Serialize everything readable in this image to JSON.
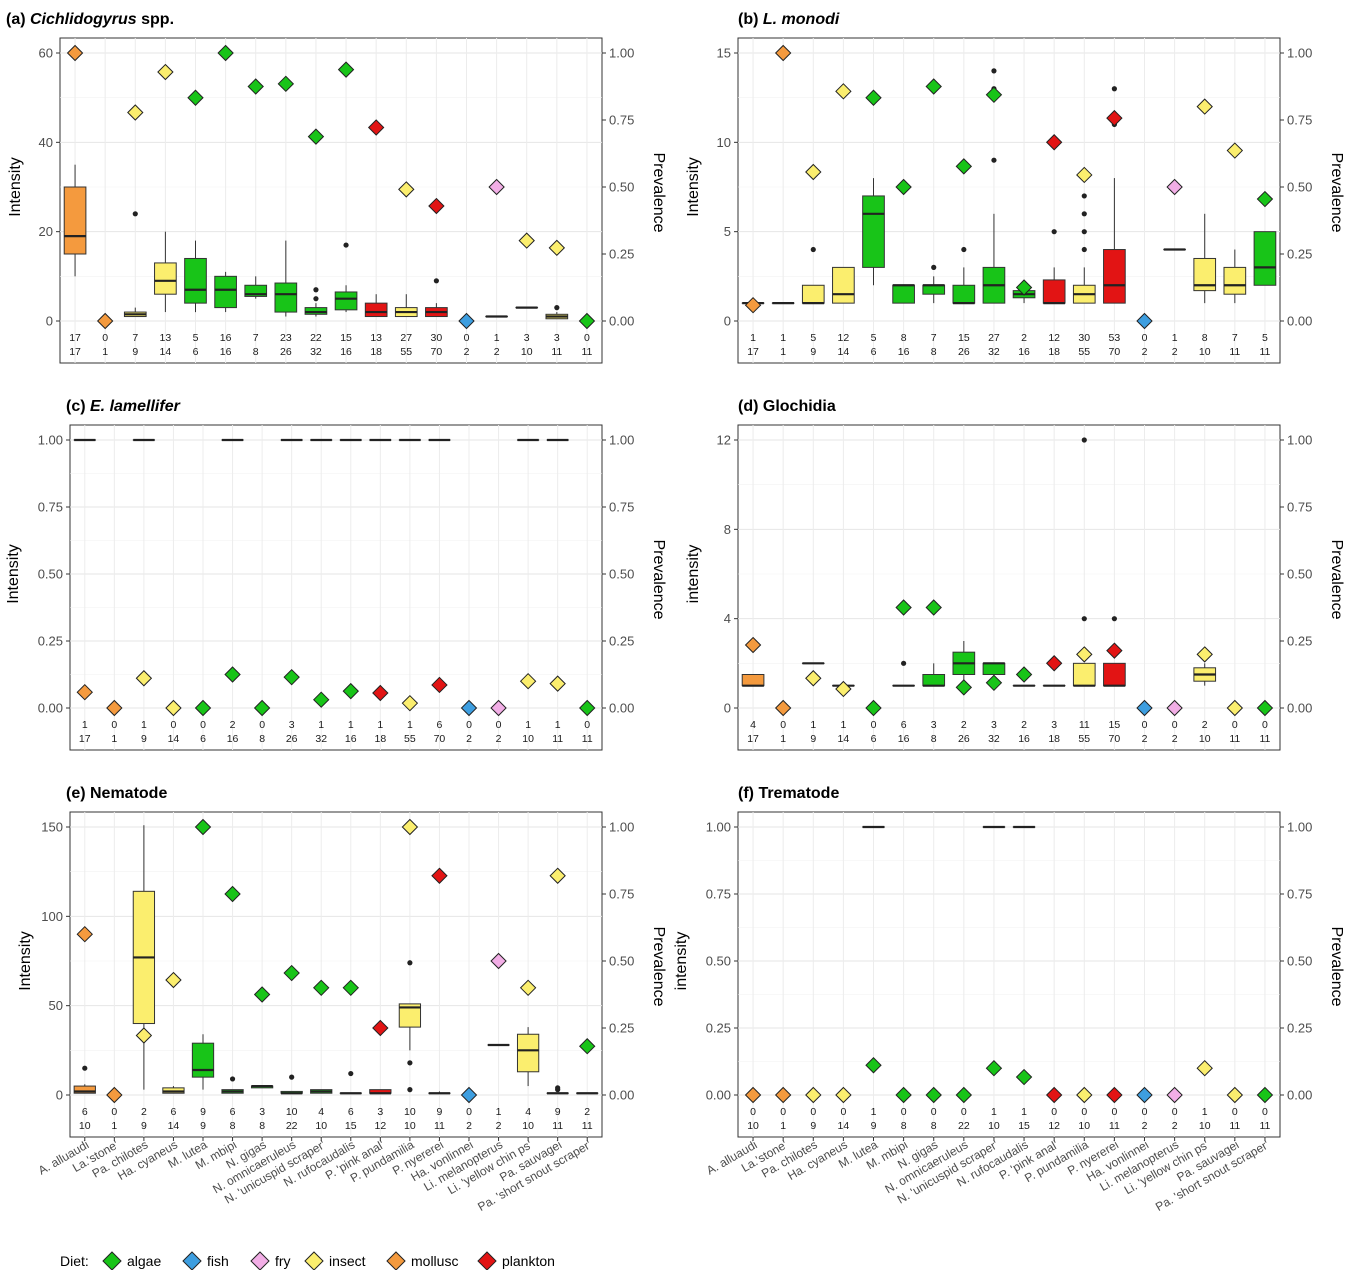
{
  "species": [
    "A. alluaudi",
    "La.'stone'",
    "Pa. chilotes",
    "Ha. cyaneus",
    "M. lutea",
    "M. mbipi",
    "N. gigas",
    "N. omnicaeruleus",
    "N. 'unicuspid scraper'",
    "N. rufocaudalis",
    "P. 'pink anal'",
    "P. pundamilia",
    "P. nyererei",
    "Ha. vonlinnei",
    "Li. melanopterus",
    "Li. 'yellow chin ps'",
    "Pa. sauvagei",
    "Pa. 'short snout scraper'"
  ],
  "diet": [
    "mollusc",
    "mollusc",
    "insect",
    "insect",
    "algae",
    "algae",
    "algae",
    "algae",
    "algae",
    "algae",
    "plankton",
    "insect",
    "plankton",
    "fish",
    "fry",
    "insect",
    "insect",
    "algae"
  ],
  "colors": {
    "algae": "#18c418",
    "fish": "#3d9ee0",
    "fry": "#f2aee6",
    "insect": "#fbee6e",
    "mollusc": "#f49a3e",
    "plankton": "#e21414"
  },
  "legend": {
    "title": "Diet:",
    "items": [
      "algae",
      "fish",
      "fry",
      "insect",
      "mollusc",
      "plankton"
    ]
  },
  "chart_data": [
    {
      "id": "a",
      "label": "(a)",
      "title_italic": "Cichlidogyrus",
      "title_rest": " spp.",
      "type": "box",
      "ylabel": "Intensity",
      "y2label": "Prevalence",
      "ylim": [
        0,
        60
      ],
      "yticks": [
        0,
        20,
        40,
        60
      ],
      "y2ticks": [
        "0.00",
        "0.25",
        "0.50",
        "0.75",
        "1.00"
      ],
      "infected": [
        17,
        0,
        7,
        13,
        5,
        16,
        7,
        23,
        22,
        15,
        13,
        27,
        30,
        0,
        1,
        3,
        3,
        0
      ],
      "examined": [
        17,
        1,
        9,
        14,
        6,
        16,
        8,
        26,
        32,
        16,
        18,
        55,
        70,
        2,
        2,
        10,
        11,
        11
      ],
      "prevalence": [
        1.0,
        0,
        0.778,
        0.929,
        0.833,
        1.0,
        0.875,
        0.885,
        0.688,
        0.938,
        0.722,
        0.491,
        0.429,
        0,
        0.5,
        0.3,
        0.273,
        0
      ],
      "box": [
        [
          10,
          15,
          19,
          30,
          35
        ],
        null,
        [
          1,
          1,
          1.5,
          2,
          3
        ],
        [
          2,
          6,
          9,
          13,
          20
        ],
        [
          2,
          4,
          7,
          14,
          18
        ],
        [
          2,
          3,
          7,
          10,
          11
        ],
        [
          5,
          5.5,
          6,
          8,
          10
        ],
        [
          1,
          2,
          6,
          8.5,
          18
        ],
        [
          1,
          1.5,
          2,
          3,
          4
        ],
        [
          2,
          2.5,
          5,
          6.5,
          8
        ],
        [
          1,
          1,
          2,
          4,
          6
        ],
        [
          1,
          1,
          2,
          3,
          6
        ],
        [
          1,
          1,
          2,
          3,
          4
        ],
        null,
        [
          1,
          1,
          1,
          1,
          1
        ],
        [
          3,
          3,
          3,
          3,
          3
        ],
        [
          0.5,
          0.5,
          1,
          1.5,
          2
        ],
        null
      ],
      "outliers": [
        [],
        [],
        [
          24
        ],
        [],
        [],
        [],
        [],
        [],
        [
          5,
          7
        ],
        [
          17
        ],
        [],
        [],
        [
          9
        ],
        [],
        [],
        [],
        [
          3
        ],
        []
      ],
      "counts_show": true
    },
    {
      "id": "b",
      "label": "(b)",
      "title_italic": "L. monodi",
      "title_rest": "",
      "type": "box",
      "ylabel": "Intensity",
      "y2label": "Prevalence",
      "ylim": [
        0,
        15
      ],
      "yticks": [
        0,
        5,
        10,
        15
      ],
      "y2ticks": [
        "0.00",
        "0.25",
        "0.50",
        "0.75",
        "1.00"
      ],
      "infected": [
        1,
        1,
        5,
        12,
        5,
        8,
        7,
        15,
        27,
        2,
        12,
        30,
        53,
        0,
        1,
        8,
        7,
        5
      ],
      "examined": [
        17,
        1,
        9,
        14,
        6,
        16,
        8,
        26,
        32,
        16,
        18,
        55,
        70,
        2,
        2,
        10,
        11,
        11
      ],
      "prevalence": [
        0.059,
        1.0,
        0.556,
        0.857,
        0.833,
        0.5,
        0.875,
        0.577,
        0.844,
        0.125,
        0.667,
        0.545,
        0.757,
        0,
        0.5,
        0.8,
        0.636,
        0.455
      ],
      "box": [
        [
          1,
          1,
          1,
          1,
          1
        ],
        [
          1,
          1,
          1,
          1,
          1
        ],
        [
          1,
          1,
          1,
          2,
          2
        ],
        [
          1,
          1,
          1.5,
          3,
          3
        ],
        [
          2,
          3,
          6,
          7,
          8
        ],
        [
          1,
          1,
          2,
          2,
          2
        ],
        [
          1,
          1.5,
          2,
          2,
          2.5
        ],
        [
          1,
          1,
          1,
          2,
          3
        ],
        [
          1,
          1,
          2,
          3,
          6
        ],
        [
          1,
          1.3,
          1.5,
          1.7,
          2
        ],
        [
          1,
          1,
          1,
          2.3,
          3
        ],
        [
          1,
          1,
          1.5,
          2,
          3
        ],
        [
          1,
          1,
          2,
          4,
          8
        ],
        null,
        [
          4,
          4,
          4,
          4,
          4
        ],
        [
          1,
          1.7,
          2,
          3.5,
          6
        ],
        [
          1,
          1.5,
          2,
          3,
          4
        ],
        [
          2,
          2,
          3,
          5,
          5
        ]
      ],
      "outliers": [
        [],
        [],
        [
          4
        ],
        [],
        [],
        [],
        [
          3
        ],
        [
          4
        ],
        [
          9,
          13,
          14
        ],
        [],
        [
          5
        ],
        [
          4,
          5,
          6,
          7
        ],
        [
          11,
          13
        ],
        [],
        [],
        [],
        [],
        []
      ],
      "counts_show": true
    },
    {
      "id": "c",
      "label": "(c)",
      "title_italic": "E. lamellifer",
      "title_rest": "",
      "type": "box",
      "ylabel": "Intensity",
      "y2label": "Prevalence",
      "ylim": [
        0,
        1
      ],
      "yticks": [
        "0.00",
        "0.25",
        "0.50",
        "0.75",
        "1.00"
      ],
      "ytick_vals": [
        0,
        0.25,
        0.5,
        0.75,
        1
      ],
      "y2ticks": [
        "0.00",
        "0.25",
        "0.50",
        "0.75",
        "1.00"
      ],
      "infected": [
        1,
        0,
        1,
        0,
        0,
        2,
        0,
        3,
        1,
        1,
        1,
        1,
        6,
        0,
        0,
        1,
        1,
        0
      ],
      "examined": [
        17,
        1,
        9,
        14,
        6,
        16,
        8,
        26,
        32,
        16,
        18,
        55,
        70,
        2,
        2,
        10,
        11,
        11
      ],
      "prevalence": [
        0.059,
        0,
        0.111,
        0,
        0,
        0.125,
        0,
        0.115,
        0.031,
        0.063,
        0.056,
        0.018,
        0.086,
        0,
        0,
        0.1,
        0.091,
        0
      ],
      "box": [
        [
          1,
          1,
          1,
          1,
          1
        ],
        null,
        [
          1,
          1,
          1,
          1,
          1
        ],
        null,
        null,
        [
          1,
          1,
          1,
          1,
          1
        ],
        null,
        [
          1,
          1,
          1,
          1,
          1
        ],
        [
          1,
          1,
          1,
          1,
          1
        ],
        [
          1,
          1,
          1,
          1,
          1
        ],
        [
          1,
          1,
          1,
          1,
          1
        ],
        [
          1,
          1,
          1,
          1,
          1
        ],
        [
          1,
          1,
          1,
          1,
          1
        ],
        null,
        null,
        [
          1,
          1,
          1,
          1,
          1
        ],
        [
          1,
          1,
          1,
          1,
          1
        ],
        null
      ],
      "outliers": [
        [],
        [],
        [],
        [],
        [],
        [],
        [],
        [],
        [],
        [],
        [],
        [],
        [],
        [],
        [],
        [],
        [],
        []
      ],
      "counts_show": true
    },
    {
      "id": "d",
      "label": "(d)",
      "title_italic": "",
      "title_rest": "Glochidia",
      "type": "box",
      "ylabel": "intensity",
      "y2label": "Prevalence",
      "ylim": [
        0,
        12
      ],
      "yticks": [
        0,
        4,
        8,
        12
      ],
      "y2ticks": [
        "0.00",
        "0.25",
        "0.50",
        "0.75",
        "1.00"
      ],
      "infected": [
        4,
        0,
        1,
        1,
        0,
        6,
        3,
        2,
        3,
        2,
        3,
        11,
        15,
        0,
        0,
        2,
        0,
        0
      ],
      "examined": [
        17,
        1,
        9,
        14,
        6,
        16,
        8,
        26,
        32,
        16,
        18,
        55,
        70,
        2,
        2,
        10,
        11,
        11
      ],
      "prevalence": [
        0.235,
        0,
        0.111,
        0.071,
        0,
        0.375,
        0.375,
        0.077,
        0.094,
        0.125,
        0.167,
        0.2,
        0.214,
        0,
        0,
        0.2,
        0,
        0
      ],
      "box": [
        [
          1,
          1,
          1,
          1.5,
          1.5
        ],
        null,
        [
          2,
          2,
          2,
          2,
          2
        ],
        [
          1,
          1,
          1,
          1,
          1
        ],
        null,
        [
          1,
          1,
          1,
          1,
          1
        ],
        [
          1,
          1,
          1,
          1.5,
          2
        ],
        [
          1,
          1.5,
          2,
          2.5,
          3
        ],
        [
          1,
          1.5,
          2,
          2,
          2
        ],
        [
          1,
          1,
          1,
          1,
          1
        ],
        [
          1,
          1,
          1,
          1,
          1
        ],
        [
          1,
          1,
          1,
          2,
          2
        ],
        [
          1,
          1,
          1,
          2,
          2
        ],
        null,
        null,
        [
          1,
          1.2,
          1.5,
          1.8,
          2
        ],
        null,
        null
      ],
      "outliers": [
        [],
        [],
        [],
        [],
        [],
        [
          2
        ],
        [],
        [],
        [],
        [],
        [],
        [
          4,
          12
        ],
        [
          4
        ],
        [],
        [],
        [],
        [],
        []
      ],
      "counts_show": true
    },
    {
      "id": "e",
      "label": "(e)",
      "title_italic": "",
      "title_rest": "Nematode",
      "type": "box",
      "ylabel": "Intensity",
      "y2label": "Prevalence",
      "ylim": [
        0,
        150
      ],
      "yticks": [
        0,
        50,
        100,
        150
      ],
      "y2ticks": [
        "0.00",
        "0.25",
        "0.50",
        "0.75",
        "1.00"
      ],
      "infected": [
        6,
        0,
        2,
        6,
        9,
        6,
        3,
        10,
        4,
        6,
        3,
        10,
        9,
        0,
        1,
        4,
        9,
        2
      ],
      "examined": [
        10,
        1,
        9,
        14,
        9,
        8,
        8,
        22,
        10,
        15,
        12,
        10,
        11,
        2,
        2,
        10,
        11,
        11
      ],
      "prevalence": [
        0.6,
        0,
        0.222,
        0.429,
        1.0,
        0.75,
        0.375,
        0.455,
        0.4,
        0.4,
        0.25,
        1.0,
        0.818,
        0,
        0.5,
        0.4,
        0.818,
        0.182
      ],
      "box": [
        [
          1,
          1,
          2,
          5,
          6
        ],
        null,
        [
          3,
          40,
          77,
          114,
          151
        ],
        [
          1,
          1,
          2,
          4,
          5
        ],
        [
          3,
          10,
          14,
          29,
          34
        ],
        [
          1,
          1,
          2,
          3,
          3
        ],
        [
          4,
          4,
          5,
          5,
          5
        ],
        [
          1,
          1,
          1,
          2,
          2
        ],
        [
          1,
          1,
          2,
          3,
          3
        ],
        [
          1,
          1,
          1,
          1,
          1
        ],
        [
          1,
          1,
          1,
          3,
          3
        ],
        [
          25,
          38,
          49,
          51,
          51
        ],
        [
          1,
          1,
          1,
          1,
          2
        ],
        null,
        [
          28,
          28,
          28,
          28,
          28
        ],
        [
          5,
          13,
          25,
          34,
          38
        ],
        [
          1,
          1,
          1,
          1,
          1
        ],
        [
          1,
          1,
          1,
          1,
          1
        ]
      ],
      "outliers": [
        [
          15
        ],
        [],
        [],
        [],
        [],
        [
          9
        ],
        [],
        [
          10
        ],
        [],
        [
          12
        ],
        [],
        [
          3,
          18,
          74
        ],
        [],
        [],
        [],
        [],
        [
          3,
          4
        ],
        []
      ],
      "counts_show": true
    },
    {
      "id": "f",
      "label": "(f)",
      "title_italic": "",
      "title_rest": "Trematode",
      "type": "box",
      "ylabel": "intensity",
      "y2label": "Prevalence",
      "ylim": [
        0,
        1
      ],
      "yticks": [
        "0.00",
        "0.25",
        "0.50",
        "0.75",
        "1.00"
      ],
      "ytick_vals": [
        0,
        0.25,
        0.5,
        0.75,
        1
      ],
      "y2ticks": [
        "0.00",
        "0.25",
        "0.50",
        "0.75",
        "1.00"
      ],
      "infected": [
        0,
        0,
        0,
        0,
        1,
        0,
        0,
        0,
        1,
        1,
        0,
        0,
        0,
        0,
        0,
        1,
        0,
        0
      ],
      "examined": [
        10,
        1,
        9,
        14,
        9,
        8,
        8,
        22,
        10,
        15,
        12,
        10,
        11,
        2,
        2,
        10,
        11,
        11
      ],
      "prevalence": [
        0,
        0,
        0,
        0,
        0.111,
        0,
        0,
        0,
        0.1,
        0.067,
        0,
        0,
        0,
        0,
        0,
        0.1,
        0,
        0
      ],
      "box": [
        null,
        null,
        null,
        null,
        [
          1,
          1,
          1,
          1,
          1
        ],
        null,
        null,
        null,
        [
          1,
          1,
          1,
          1,
          1
        ],
        [
          1,
          1,
          1,
          1,
          1
        ],
        null,
        null,
        null,
        null,
        null,
        null,
        null,
        null
      ],
      "outliers": [
        [],
        [],
        [],
        [],
        [],
        [],
        [],
        [],
        [],
        [],
        [],
        [],
        [],
        [],
        [],
        [],
        [],
        []
      ],
      "counts_show": true
    }
  ]
}
